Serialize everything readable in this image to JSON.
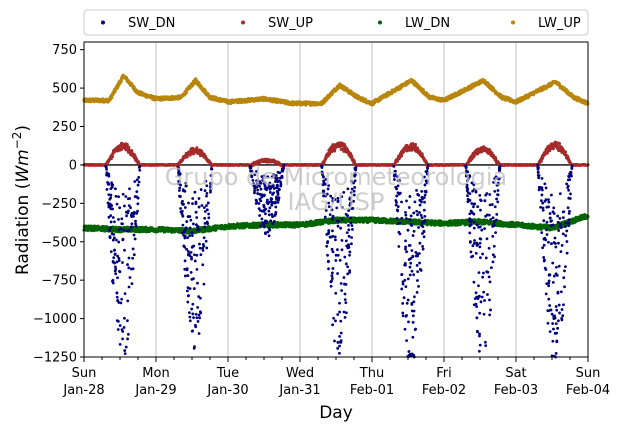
{
  "chart_data": {
    "type": "scatter",
    "title": "",
    "xlabel": "Day",
    "ylabel_main": "Radiation (",
    "ylabel_unit": "Wm",
    "ylabel_exp": "−2",
    "ylabel_close": ")",
    "ylim": [
      -1250,
      800
    ],
    "yticks": [
      750,
      500,
      250,
      0,
      -250,
      -500,
      -750,
      -1000,
      -1250
    ],
    "ytick_labels": [
      "750",
      "500",
      "250",
      "0",
      "−250",
      "−500",
      "−750",
      "−1000",
      "−1250"
    ],
    "xlim": [
      0,
      7
    ],
    "xtick_positions": [
      0,
      1,
      2,
      3,
      4,
      5,
      6,
      7
    ],
    "xtick_labels": [
      [
        "Sun",
        "Jan-28"
      ],
      [
        "Mon",
        "Jan-29"
      ],
      [
        "Tue",
        "Jan-30"
      ],
      [
        "Wed",
        "Jan-31"
      ],
      [
        "Thu",
        "Feb-01"
      ],
      [
        "Fri",
        "Feb-02"
      ],
      [
        "Sat",
        "Feb-03"
      ],
      [
        "Sun",
        "Feb-04"
      ]
    ],
    "grid": "vertical",
    "legend_placement": "top-center outside",
    "zero_line": 0,
    "watermark": [
      "Grupo de Micrometeorologia",
      "IAG/USP"
    ],
    "series": [
      {
        "name": "SW_DN",
        "color": "#00007f",
        "description_values": "daytime downward shortwave shown negative",
        "daily_min": [
          -1250,
          -1150,
          -450,
          -1200,
          -1250,
          -1230,
          -1250
        ]
      },
      {
        "name": "SW_UP",
        "color": "#a52a2a",
        "daily_max": [
          140,
          110,
          40,
          150,
          140,
          120,
          150
        ]
      },
      {
        "name": "LW_DN",
        "color": "#006400",
        "profile": [
          [
            0,
            -410
          ],
          [
            0.5,
            -420
          ],
          [
            1,
            -420
          ],
          [
            1.5,
            -430
          ],
          [
            2,
            -400
          ],
          [
            2.5,
            -390
          ],
          [
            3,
            -390
          ],
          [
            3.5,
            -360
          ],
          [
            4,
            -360
          ],
          [
            4.5,
            -370
          ],
          [
            5,
            -380
          ],
          [
            5.5,
            -370
          ],
          [
            6,
            -390
          ],
          [
            6.5,
            -410
          ],
          [
            7,
            -330
          ]
        ]
      },
      {
        "name": "LW_UP",
        "color": "#b8860b",
        "profile": [
          [
            0,
            420
          ],
          [
            0.35,
            420
          ],
          [
            0.55,
            580
          ],
          [
            0.75,
            470
          ],
          [
            1,
            430
          ],
          [
            1.35,
            440
          ],
          [
            1.55,
            550
          ],
          [
            1.75,
            440
          ],
          [
            2,
            410
          ],
          [
            2.5,
            430
          ],
          [
            2.9,
            400
          ],
          [
            3.3,
            400
          ],
          [
            3.55,
            520
          ],
          [
            3.8,
            440
          ],
          [
            4,
            400
          ],
          [
            4.55,
            550
          ],
          [
            4.8,
            440
          ],
          [
            5,
            420
          ],
          [
            5.55,
            550
          ],
          [
            5.8,
            440
          ],
          [
            6,
            410
          ],
          [
            6.55,
            540
          ],
          [
            6.8,
            440
          ],
          [
            7,
            400
          ]
        ]
      }
    ]
  }
}
